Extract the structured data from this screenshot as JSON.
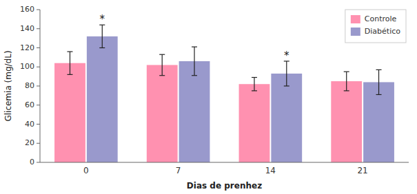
{
  "chart_data": {
    "type": "bar",
    "categories": [
      "0",
      "7",
      "14",
      "21"
    ],
    "series": [
      {
        "name": "Controle",
        "color": "#FF91B0",
        "values": [
          104,
          102,
          82,
          85
        ],
        "errors": [
          12,
          11,
          7,
          10
        ]
      },
      {
        "name": "Diabético",
        "color": "#9999CC",
        "values": [
          132,
          106,
          93,
          84
        ],
        "errors": [
          12,
          15,
          13,
          13
        ]
      }
    ],
    "x_label": "Dias de prenhez",
    "y_label": "Glicemia (mg/dL)",
    "ylim": [
      0,
      160
    ],
    "yticks": [
      0,
      20,
      40,
      60,
      80,
      100,
      120,
      140,
      160
    ],
    "annotations": [
      {
        "text": "*",
        "category": "0",
        "series": "Diabético"
      },
      {
        "text": "*",
        "category": "14",
        "series": "Diabético"
      }
    ],
    "legend": "upper right",
    "grid": false
  }
}
